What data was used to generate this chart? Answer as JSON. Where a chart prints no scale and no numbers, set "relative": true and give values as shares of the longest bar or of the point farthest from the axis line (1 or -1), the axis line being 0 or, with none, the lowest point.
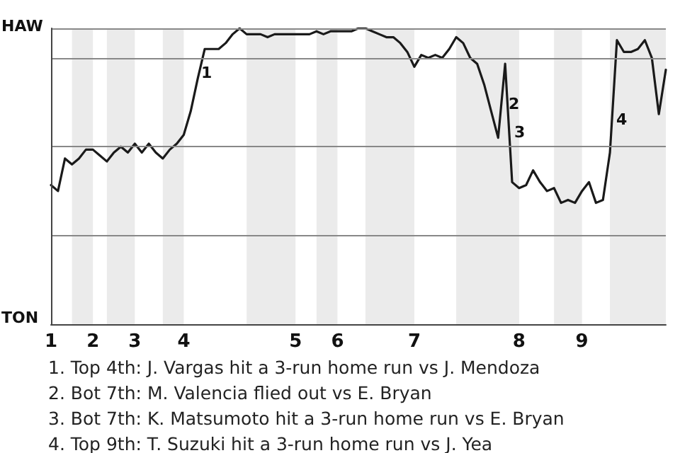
{
  "chart_data": {
    "type": "line",
    "relative": true,
    "categories": [
      "1",
      null,
      null,
      null,
      null,
      null,
      "2",
      null,
      null,
      null,
      null,
      null,
      "3",
      null,
      null,
      null,
      null,
      null,
      null,
      "4",
      null,
      null,
      null,
      null,
      null,
      null,
      null,
      null,
      null,
      null,
      null,
      null,
      null,
      null,
      null,
      "5",
      null,
      null,
      null,
      null,
      null,
      "6",
      null,
      null,
      null,
      null,
      null,
      null,
      null,
      null,
      null,
      null,
      "7",
      null,
      null,
      null,
      null,
      null,
      null,
      null,
      null,
      null,
      null,
      null,
      null,
      null,
      null,
      "8",
      null,
      null,
      null,
      null,
      null,
      null,
      null,
      null,
      "9",
      null,
      null,
      null,
      null,
      null,
      null,
      null,
      null,
      null,
      null,
      null,
      null
    ],
    "series": [
      {
        "color": "#1a1a1a",
        "values": [
          0.47,
          0.45,
          0.56,
          0.54,
          0.56,
          0.59,
          0.59,
          0.57,
          0.55,
          0.58,
          0.6,
          0.58,
          0.61,
          0.58,
          0.61,
          0.58,
          0.56,
          0.59,
          0.61,
          0.64,
          0.72,
          0.83,
          0.93,
          0.93,
          0.93,
          0.95,
          0.98,
          1,
          0.98,
          0.98,
          0.98,
          0.97,
          0.98,
          0.98,
          0.98,
          0.98,
          0.98,
          0.98,
          0.99,
          0.98,
          0.99,
          0.99,
          0.99,
          0.99,
          1,
          1,
          0.99,
          0.98,
          0.97,
          0.97,
          0.95,
          0.92,
          0.87,
          0.91,
          0.9,
          0.91,
          0.9,
          0.93,
          0.97,
          0.95,
          0.9,
          0.88,
          0.81,
          0.72,
          0.63,
          0.88,
          0.48,
          0.46,
          0.47,
          0.52,
          0.48,
          0.45,
          0.46,
          0.41,
          0.42,
          0.41,
          0.45,
          0.48,
          0.41,
          0.42,
          0.58,
          0.96,
          0.92,
          0.92,
          0.93,
          0.96,
          0.9,
          0.71,
          0.86
        ]
      }
    ],
    "grid": "y",
    "marker": "none",
    "line_style": "solid",
    "annotations": [
      "HAW",
      "TON",
      "1",
      "2",
      "3",
      "4",
      "1. Top 4th: J. Vargas hit a 3-run home run vs J. Mendoza",
      "2. Bot 7th: M. Valencia flied out vs E. Bryan",
      "3. Bot 7th: K. Matsumoto hit a 3-run home run vs E. Bryan",
      "4. Top 9th: T. Suzuki hit a 3-run home run vs J. Yea"
    ]
  }
}
